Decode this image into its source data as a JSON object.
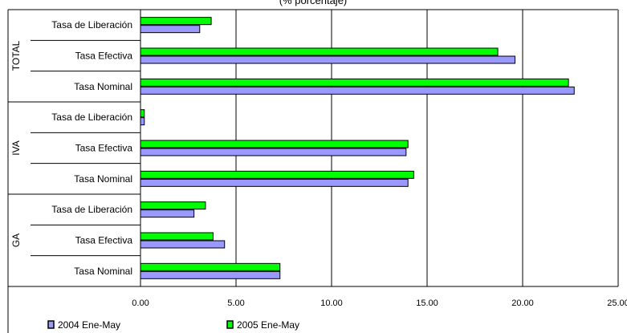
{
  "chart_data": {
    "type": "bar",
    "orientation": "horizontal",
    "title": "(% porcentaje)",
    "xlim": [
      0,
      25
    ],
    "x_ticks": [
      "0.00",
      "5.00",
      "10.00",
      "15.00",
      "20.00",
      "25.00"
    ],
    "grid": "vertical",
    "legend_position": "bottom-left",
    "groups": [
      {
        "label": "TOTAL",
        "categories": [
          "Tasa de Liberación",
          "Tasa Efectiva",
          "Tasa Nominal"
        ]
      },
      {
        "label": "IVA",
        "categories": [
          "Tasa de Liberación",
          "Tasa Efectiva",
          "Tasa Nominal"
        ]
      },
      {
        "label": "GA",
        "categories": [
          "Tasa de Liberación",
          "Tasa Efectiva",
          "Tasa Nominal"
        ]
      }
    ],
    "series": [
      {
        "name": "2004 Ene-May",
        "color": "#9999ff",
        "values": [
          3.1,
          19.6,
          22.7,
          0.2,
          13.9,
          14.0,
          2.8,
          4.4,
          7.3
        ]
      },
      {
        "name": "2005 Ene-May",
        "color": "#00ff00",
        "values": [
          3.7,
          18.7,
          22.4,
          0.2,
          14.0,
          14.3,
          3.4,
          3.8,
          7.3
        ]
      }
    ]
  }
}
